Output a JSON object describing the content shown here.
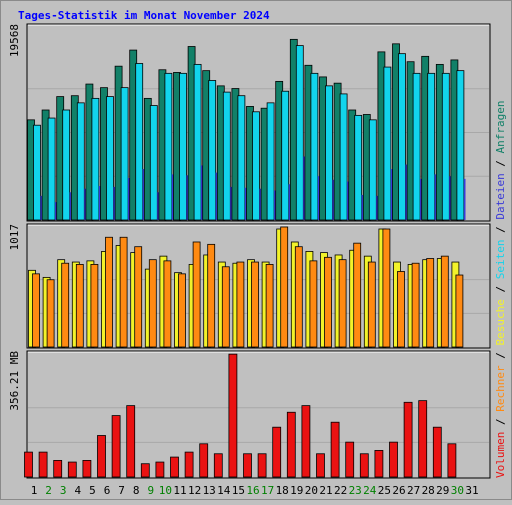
{
  "title": "Tages-Statistik im Monat November 2024",
  "colors": {
    "background": "#c0c0c0",
    "title": "#0000ff",
    "anfragen": "#128068",
    "dateien": "#3a3ad8",
    "seiten": "#12d4ec",
    "besuche": "#f2f22a",
    "rechner": "#ff8a12",
    "volumen": "#ea1212",
    "weekend": "#008000",
    "weekday": "#000000",
    "separator": "#000000"
  },
  "legend": {
    "anfragen": "Anfragen",
    "dateien": "Dateien",
    "seiten": "Seiten",
    "besuche": "Besuche",
    "rechner": "Rechner",
    "volumen": "Volumen",
    "sep": " / "
  },
  "chart_data": {
    "type": "bar",
    "x_label_days": [
      "1",
      "2",
      "3",
      "4",
      "5",
      "6",
      "7",
      "8",
      "9",
      "10",
      "11",
      "12",
      "13",
      "14",
      "15",
      "16",
      "17",
      "18",
      "19",
      "20",
      "21",
      "22",
      "23",
      "24",
      "25",
      "26",
      "27",
      "28",
      "29",
      "30",
      "31"
    ],
    "weekend_days": [
      2,
      3,
      9,
      10,
      16,
      17,
      23,
      24,
      30
    ],
    "top_panel": {
      "axis_max_label": "19568",
      "axis_max": 19568,
      "series": {
        "anfragen": [
          11200,
          12300,
          13800,
          13900,
          15200,
          14800,
          17200,
          19000,
          13600,
          16800,
          16500,
          19400,
          16700,
          15000,
          14700,
          12700,
          12500,
          15500,
          20200,
          17300,
          16000,
          15300,
          12300,
          11800,
          18800,
          19700,
          17700,
          18300,
          17400,
          17900,
          null
        ],
        "seiten": [
          10600,
          11400,
          12300,
          13100,
          13600,
          13800,
          14800,
          17500,
          12800,
          16400,
          16400,
          17400,
          15600,
          14300,
          13900,
          12100,
          13100,
          14400,
          19500,
          16400,
          15000,
          14100,
          11700,
          11200,
          17100,
          18600,
          16400,
          16400,
          16400,
          16700,
          null
        ],
        "dateien": [
          2700,
          2000,
          3100,
          3500,
          3800,
          3700,
          4700,
          5700,
          3100,
          5100,
          5000,
          6100,
          5300,
          3700,
          3600,
          3500,
          3300,
          4000,
          7100,
          4900,
          4500,
          4300,
          2800,
          2700,
          5700,
          6200,
          4600,
          5100,
          4900,
          4600,
          null
        ]
      }
    },
    "mid_panel": {
      "axis_max_label": "1017",
      "axis_max": 1017,
      "series": {
        "besuche": [
          650,
          590,
          740,
          720,
          730,
          810,
          860,
          800,
          660,
          770,
          630,
          700,
          780,
          720,
          710,
          740,
          720,
          1000,
          890,
          810,
          800,
          780,
          820,
          770,
          1000,
          720,
          700,
          740,
          750,
          720,
          null
        ],
        "rechner": [
          620,
          570,
          710,
          700,
          700,
          930,
          930,
          850,
          740,
          730,
          620,
          890,
          870,
          680,
          720,
          720,
          700,
          1017,
          850,
          730,
          760,
          740,
          880,
          720,
          1000,
          640,
          710,
          750,
          770,
          610,
          null
        ]
      }
    },
    "bottom_panel": {
      "axis_max_label": "356.21 MB",
      "axis_max": 356.21,
      "series": {
        "volumen": [
          75,
          75,
          50,
          45,
          50,
          125,
          185,
          215,
          40,
          45,
          60,
          75,
          100,
          70,
          370,
          70,
          70,
          150,
          195,
          215,
          70,
          165,
          105,
          70,
          80,
          105,
          225,
          230,
          150,
          100,
          null
        ]
      }
    }
  }
}
